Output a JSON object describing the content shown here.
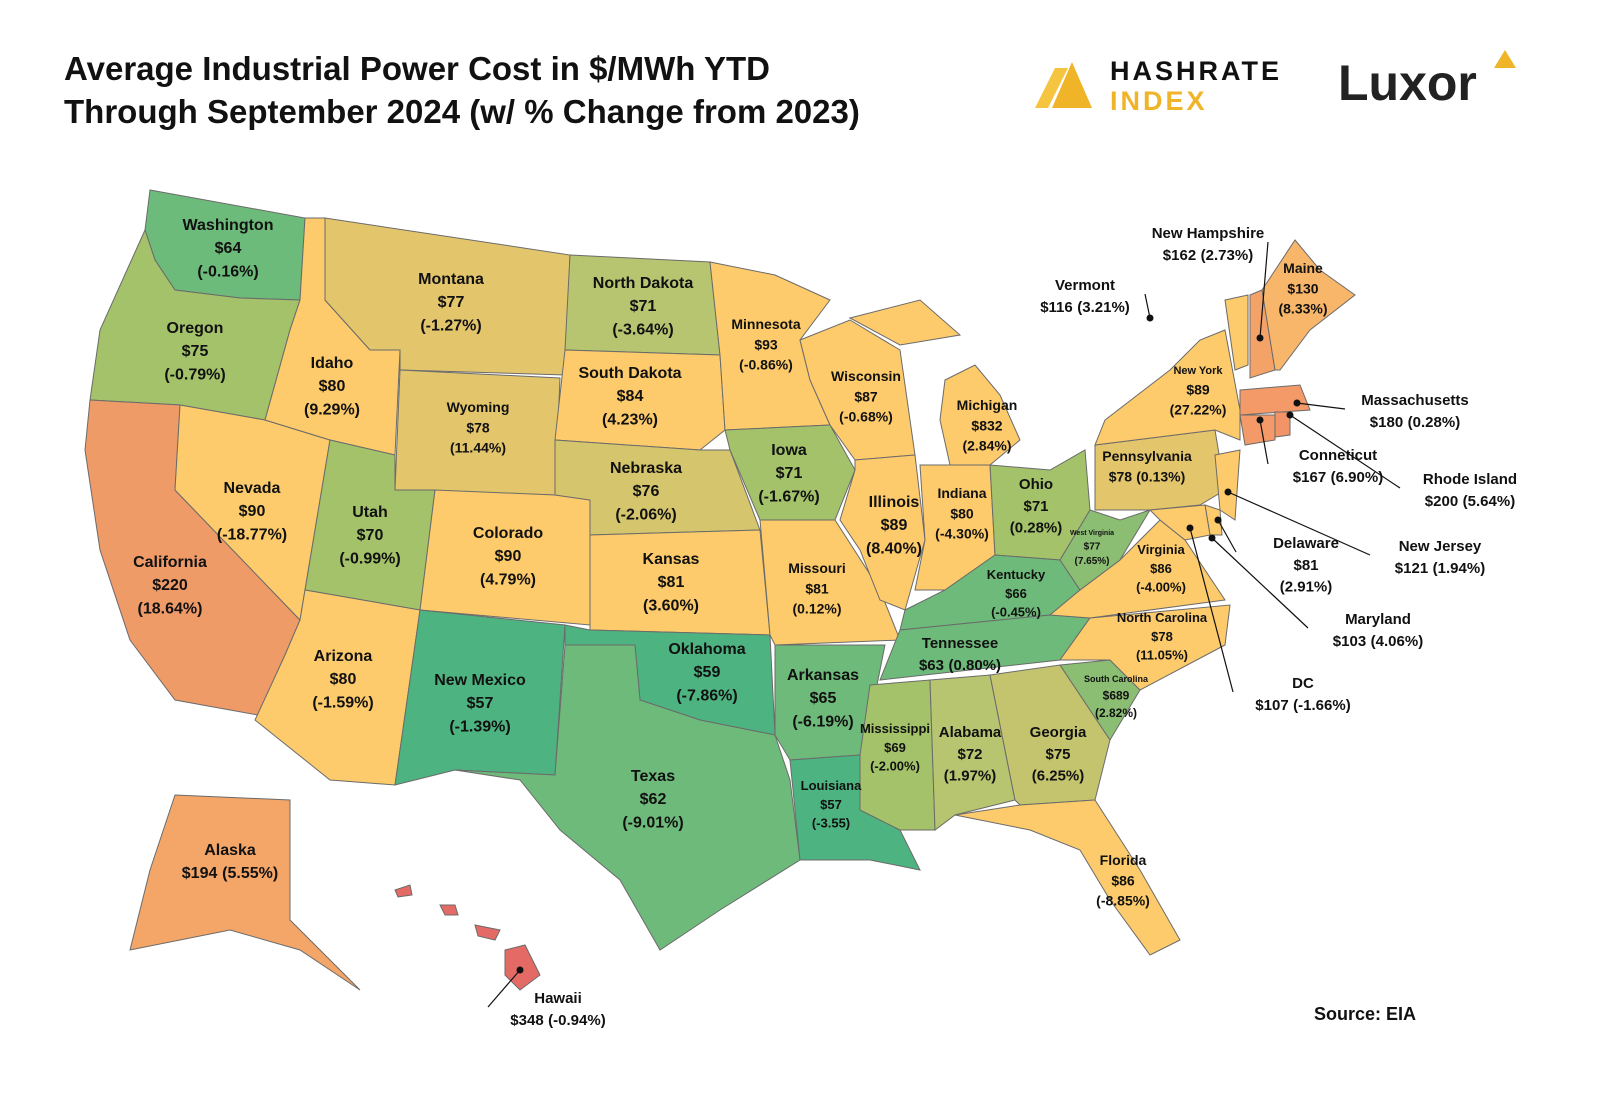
{
  "header": {
    "title_lines": [
      "Average Industrial Power Cost in $/MWh YTD",
      "Through September 2024 (w/ % Change from 2023)"
    ],
    "logo_hashrate": "HASHRATE",
    "logo_index": "INDEX",
    "logo_luxor": "Luxor"
  },
  "map": {
    "states": [
      {
        "name": "Washington",
        "price": "$64",
        "change": "(-0.16%)",
        "color": "#6dbb7a"
      },
      {
        "name": "Oregon",
        "price": "$75",
        "change": "(-0.79%)",
        "color": "#a3c26a"
      },
      {
        "name": "California",
        "price": "$220",
        "change": "(18.64%)",
        "color": "#ef9b68"
      },
      {
        "name": "Nevada",
        "price": "$90",
        "change": "(-18.77%)",
        "color": "#fdcb6b"
      },
      {
        "name": "Idaho",
        "price": "$80",
        "change": "(9.29%)",
        "color": "#fdcb6b"
      },
      {
        "name": "Montana",
        "price": "$77",
        "change": "(-1.27%)",
        "color": "#e3c56c"
      },
      {
        "name": "Wyoming",
        "price": "$78",
        "change": "(11.44%)",
        "color": "#e3c56c"
      },
      {
        "name": "Utah",
        "price": "$70",
        "change": "(-0.99%)",
        "color": "#a3c26a"
      },
      {
        "name": "Arizona",
        "price": "$80",
        "change": "(-1.59%)",
        "color": "#fdcb6b"
      },
      {
        "name": "Colorado",
        "price": "$90",
        "change": "(4.79%)",
        "color": "#fdcb6b"
      },
      {
        "name": "New Mexico",
        "price": "$57",
        "change": "(-1.39%)",
        "color": "#4db380"
      },
      {
        "name": "North Dakota",
        "price": "$71",
        "change": "(-3.64%)",
        "color": "#b7c470"
      },
      {
        "name": "South Dakota",
        "price": "$84",
        "change": "(4.23%)",
        "color": "#fdcb6b"
      },
      {
        "name": "Nebraska",
        "price": "$76",
        "change": "(-2.06%)",
        "color": "#d5c56d"
      },
      {
        "name": "Kansas",
        "price": "$81",
        "change": "(3.60%)",
        "color": "#fdcb6b"
      },
      {
        "name": "Oklahoma",
        "price": "$59",
        "change": "(-7.86%)",
        "color": "#4db380"
      },
      {
        "name": "Texas",
        "price": "$62",
        "change": "(-9.01%)",
        "color": "#6eba7a"
      },
      {
        "name": "Minnesota",
        "price": "$93",
        "change": "(-0.86%)",
        "color": "#fdcb6b"
      },
      {
        "name": "Iowa",
        "price": "$71",
        "change": "(-1.67%)",
        "color": "#a3c26a"
      },
      {
        "name": "Missouri",
        "price": "$81",
        "change": "(0.12%)",
        "color": "#fdcb6b"
      },
      {
        "name": "Arkansas",
        "price": "$65",
        "change": "(-6.19%)",
        "color": "#6eba7a"
      },
      {
        "name": "Louisiana",
        "price": "$57",
        "change": "(-3.55)",
        "color": "#4db380"
      },
      {
        "name": "Wisconsin",
        "price": "$87",
        "change": "(-0.68%)",
        "color": "#fdcb6b"
      },
      {
        "name": "Illinois",
        "price": "$89",
        "change": "(8.40%)",
        "color": "#fdcb6b"
      },
      {
        "name": "Michigan",
        "price": "$832",
        "change": "(2.84%)",
        "color": "#fdcb6b"
      },
      {
        "name": "Indiana",
        "price": "$80",
        "change": "(-4.30%)",
        "color": "#fdcb6b"
      },
      {
        "name": "Ohio",
        "price": "$71",
        "change": "(0.28%)",
        "color": "#a3c26a"
      },
      {
        "name": "Kentucky",
        "price": "$66",
        "change": "(-0.45%)",
        "color": "#6eba7a"
      },
      {
        "name": "Tennessee",
        "price": "$63",
        "change": "(0.80%)",
        "color": "#6eba7a"
      },
      {
        "name": "Mississippi",
        "price": "$69",
        "change": "(-2.00%)",
        "color": "#a3c26a"
      },
      {
        "name": "Alabama",
        "price": "$72",
        "change": "(1.97%)",
        "color": "#b7c470"
      },
      {
        "name": "Georgia",
        "price": "$75",
        "change": "(6.25%)",
        "color": "#c4c46e"
      },
      {
        "name": "Florida",
        "price": "$86",
        "change": "(-8.85%)",
        "color": "#fdcb6b"
      },
      {
        "name": "South Carolina",
        "price": "$689",
        "change": "(2.82%)",
        "color": "#8bbd73"
      },
      {
        "name": "North Carolina",
        "price": "$78",
        "change": "(11.05%)",
        "color": "#fdcb6b"
      },
      {
        "name": "Virginia",
        "price": "$86",
        "change": "(-4.00%)",
        "color": "#fdcb6b"
      },
      {
        "name": "West Virginia",
        "price": "$77",
        "change": "(7.65%)",
        "color": "#8bbd73"
      },
      {
        "name": "Pennsylvania",
        "price": "$78",
        "change": "(0.13%)",
        "color": "#e3c56c"
      },
      {
        "name": "New York",
        "price": "$89",
        "change": "(27.22%)",
        "color": "#fdcb6b"
      },
      {
        "name": "New Jersey",
        "price": "$121",
        "change": "(1.94%)",
        "color": "#fdcb6b"
      },
      {
        "name": "Delaware",
        "price": "$81",
        "change": "(2.91%)",
        "color": "#fdcb6b"
      },
      {
        "name": "Maryland",
        "price": "$103",
        "change": "(4.06%)",
        "color": "#fdcb6b"
      },
      {
        "name": "Vermont",
        "price": "$116",
        "change": "(3.21%)",
        "color": "#fdcb6b"
      },
      {
        "name": "New Hampshire",
        "price": "$162",
        "change": "(2.73%)",
        "color": "#f4a368"
      },
      {
        "name": "Maine",
        "price": "$130",
        "change": "(8.33%)",
        "color": "#f8b66a"
      },
      {
        "name": "Massachusetts",
        "price": "$180",
        "change": "(0.28%)",
        "color": "#f39a68"
      },
      {
        "name": "Conneticut",
        "price": "$167",
        "change": "(6.90%)",
        "color": "#f39a68"
      },
      {
        "name": "Rhode Island",
        "price": "$200",
        "change": "(5.64%)",
        "color": "#f29468"
      },
      {
        "name": "DC",
        "price": "$107",
        "change": "(-1.66%)",
        "color": "#fdcb6b"
      },
      {
        "name": "Alaska",
        "price": "$194",
        "change": "(5.55%)",
        "color": "#f3a668"
      },
      {
        "name": "Hawaii",
        "price": "$348",
        "change": "(-0.94%)",
        "color": "#e46a66"
      }
    ]
  },
  "source": "Source: EIA"
}
